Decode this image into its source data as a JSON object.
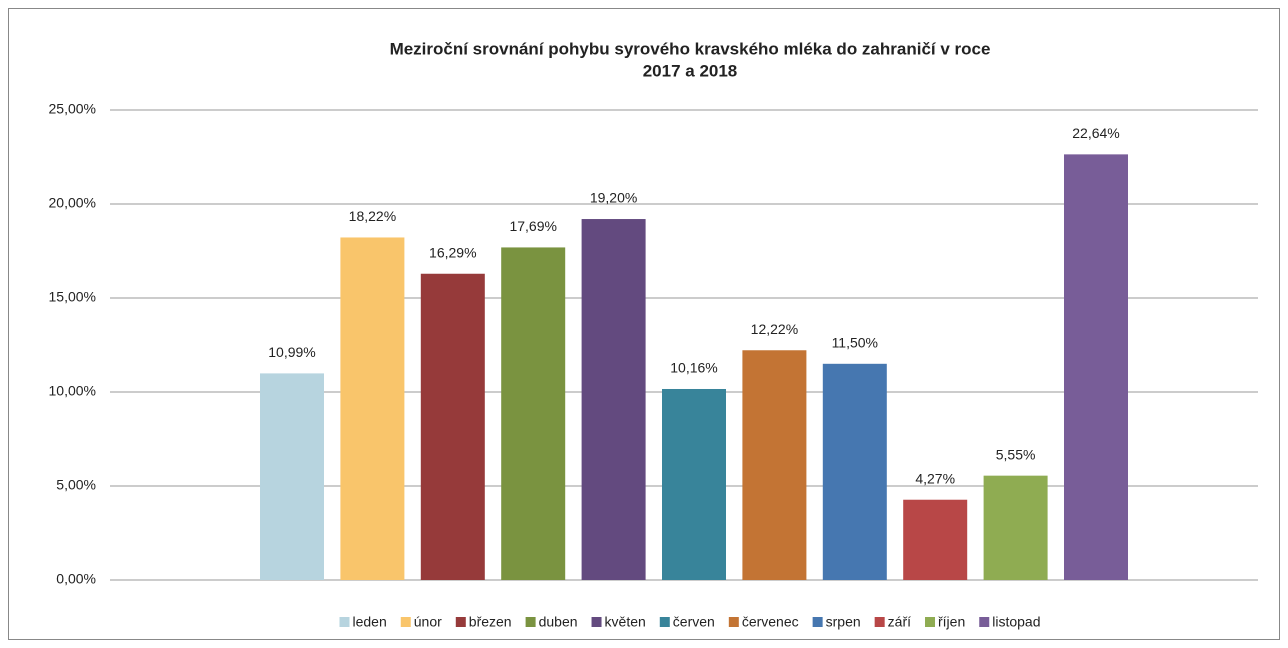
{
  "chart_data": {
    "type": "bar",
    "title": [
      "Meziroční srovnání pohybu syrového kravského mléka do zahraničí v roce",
      "2017 a 2018"
    ],
    "series": [
      {
        "name": "leden",
        "color": "#b7d4df",
        "values": [
          10.99
        ],
        "value_labels": [
          "10,99%"
        ]
      },
      {
        "name": "únor",
        "color": "#f9c56b",
        "values": [
          18.22
        ],
        "value_labels": [
          "18,22%"
        ]
      },
      {
        "name": "březen",
        "color": "#963a3a",
        "values": [
          16.29
        ],
        "value_labels": [
          "16,29%"
        ]
      },
      {
        "name": "duben",
        "color": "#7a9340",
        "values": [
          17.69
        ],
        "value_labels": [
          "17,69%"
        ]
      },
      {
        "name": "květen",
        "color": "#634a7f",
        "values": [
          19.2
        ],
        "value_labels": [
          "19,20%"
        ]
      },
      {
        "name": "červen",
        "color": "#38849a",
        "values": [
          10.16
        ],
        "value_labels": [
          "10,16%"
        ]
      },
      {
        "name": "červenec",
        "color": "#c37434",
        "values": [
          12.22
        ],
        "value_labels": [
          "12,22%"
        ]
      },
      {
        "name": "srpen",
        "color": "#4677b0",
        "values": [
          11.5
        ],
        "value_labels": [
          "11,50%"
        ]
      },
      {
        "name": "září",
        "color": "#b84747",
        "values": [
          4.27
        ],
        "value_labels": [
          "4,27%"
        ]
      },
      {
        "name": "říjen",
        "color": "#8fac52",
        "values": [
          5.55
        ],
        "value_labels": [
          "5,55%"
        ]
      },
      {
        "name": "listopad",
        "color": "#785d98",
        "values": [
          22.64
        ],
        "value_labels": [
          "22,64%"
        ]
      }
    ],
    "ylim": [
      0,
      25
    ],
    "yticks": [
      {
        "value": 0,
        "label": "0,00%"
      },
      {
        "value": 5,
        "label": "5,00%"
      },
      {
        "value": 10,
        "label": "10,00%"
      },
      {
        "value": 15,
        "label": "15,00%"
      },
      {
        "value": 20,
        "label": "20,00%"
      },
      {
        "value": 25,
        "label": "25,00%"
      }
    ],
    "grid": true,
    "legend": "bottom"
  }
}
